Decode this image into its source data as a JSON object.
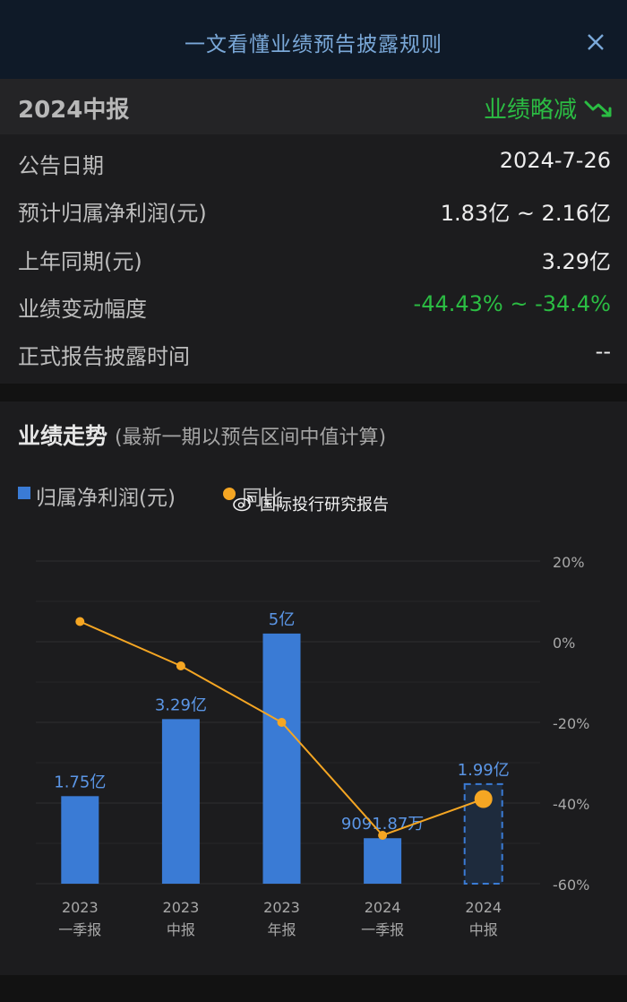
{
  "header": {
    "title": "一文看懂业绩预告披露规则"
  },
  "report": {
    "title": "2024中报",
    "status": "业绩略减",
    "rows": [
      {
        "label": "公告日期",
        "value": "2024-7-26"
      },
      {
        "label": "预计归属净利润(元)",
        "value": "1.83亿 ~ 2.16亿"
      },
      {
        "label": "上年同期(元)",
        "value": "3.29亿"
      },
      {
        "label": "业绩变动幅度",
        "value": "-44.43% ~ -34.4%"
      },
      {
        "label": "正式报告披露时间",
        "value": "--"
      }
    ]
  },
  "trend": {
    "title": "业绩走势",
    "subtitle": "(最新一期以预告区间中值计算)"
  },
  "watermark": "国际投行研究报告",
  "colors": {
    "bar": "#3a7bd5",
    "line": "#f5a623",
    "green": "#2bbd43"
  },
  "chart_data": {
    "type": "bar",
    "categories": [
      "2023\n一季报",
      "2023\n中报",
      "2023\n年报",
      "2024\n一季报",
      "2024\n中报"
    ],
    "series": [
      {
        "name": "归属净利润(元)",
        "type": "bar",
        "values": [
          1.75,
          3.29,
          5.0,
          0.909187,
          1.99
        ],
        "labels": [
          "1.75亿",
          "3.29亿",
          "5亿",
          "9091.87万",
          "1.99亿"
        ],
        "forecast_index": 4
      },
      {
        "name": "同比",
        "type": "line",
        "axis": "right",
        "values": [
          5,
          -6,
          -20,
          -48,
          -39
        ]
      }
    ],
    "y_right_ticks": [
      "20%",
      "0%",
      "-20%",
      "-40%",
      "-60%"
    ],
    "y_right_range": [
      -60,
      20
    ],
    "grid": true
  }
}
